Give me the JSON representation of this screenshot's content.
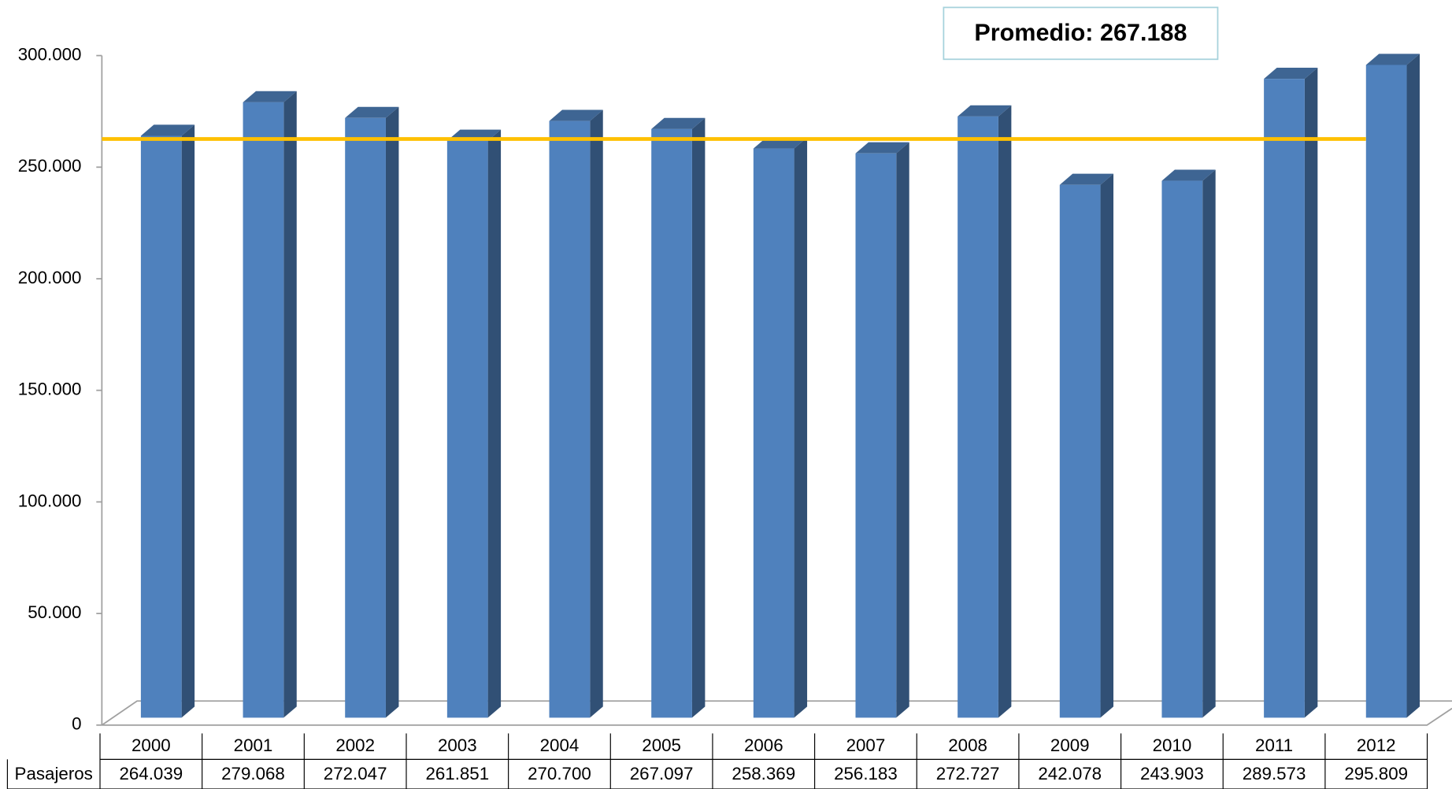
{
  "chart_data": {
    "type": "bar",
    "categories": [
      "2000",
      "2001",
      "2002",
      "2003",
      "2004",
      "2005",
      "2006",
      "2007",
      "2008",
      "2009",
      "2010",
      "2011",
      "2012"
    ],
    "series": [
      {
        "name": "Pasajeros",
        "color": "#4f81bd",
        "values": [
          264039,
          279068,
          272047,
          261851,
          270700,
          267097,
          258369,
          256183,
          272727,
          242078,
          243903,
          289573,
          295809
        ],
        "value_labels": [
          "264.039",
          "279.068",
          "272.047",
          "261.851",
          "270.700",
          "267.097",
          "258.369",
          "256.183",
          "272.727",
          "242.078",
          "243.903",
          "289.573",
          "295.809"
        ]
      }
    ],
    "ylim": [
      0,
      300000
    ],
    "yticks": [
      0,
      {
        "value": 50000,
        "label": "50.000"
      },
      {
        "value": 100000,
        "label": "100.000"
      },
      {
        "value": 150000,
        "label": "150.000"
      },
      {
        "value": 200000,
        "label": "200.000"
      },
      {
        "value": 250000,
        "label": "250.000"
      },
      {
        "value": 300000,
        "label": "300.000"
      }
    ],
    "average": {
      "label": "Promedio: 267.188",
      "value": 267188,
      "color": "#ffc000"
    }
  }
}
